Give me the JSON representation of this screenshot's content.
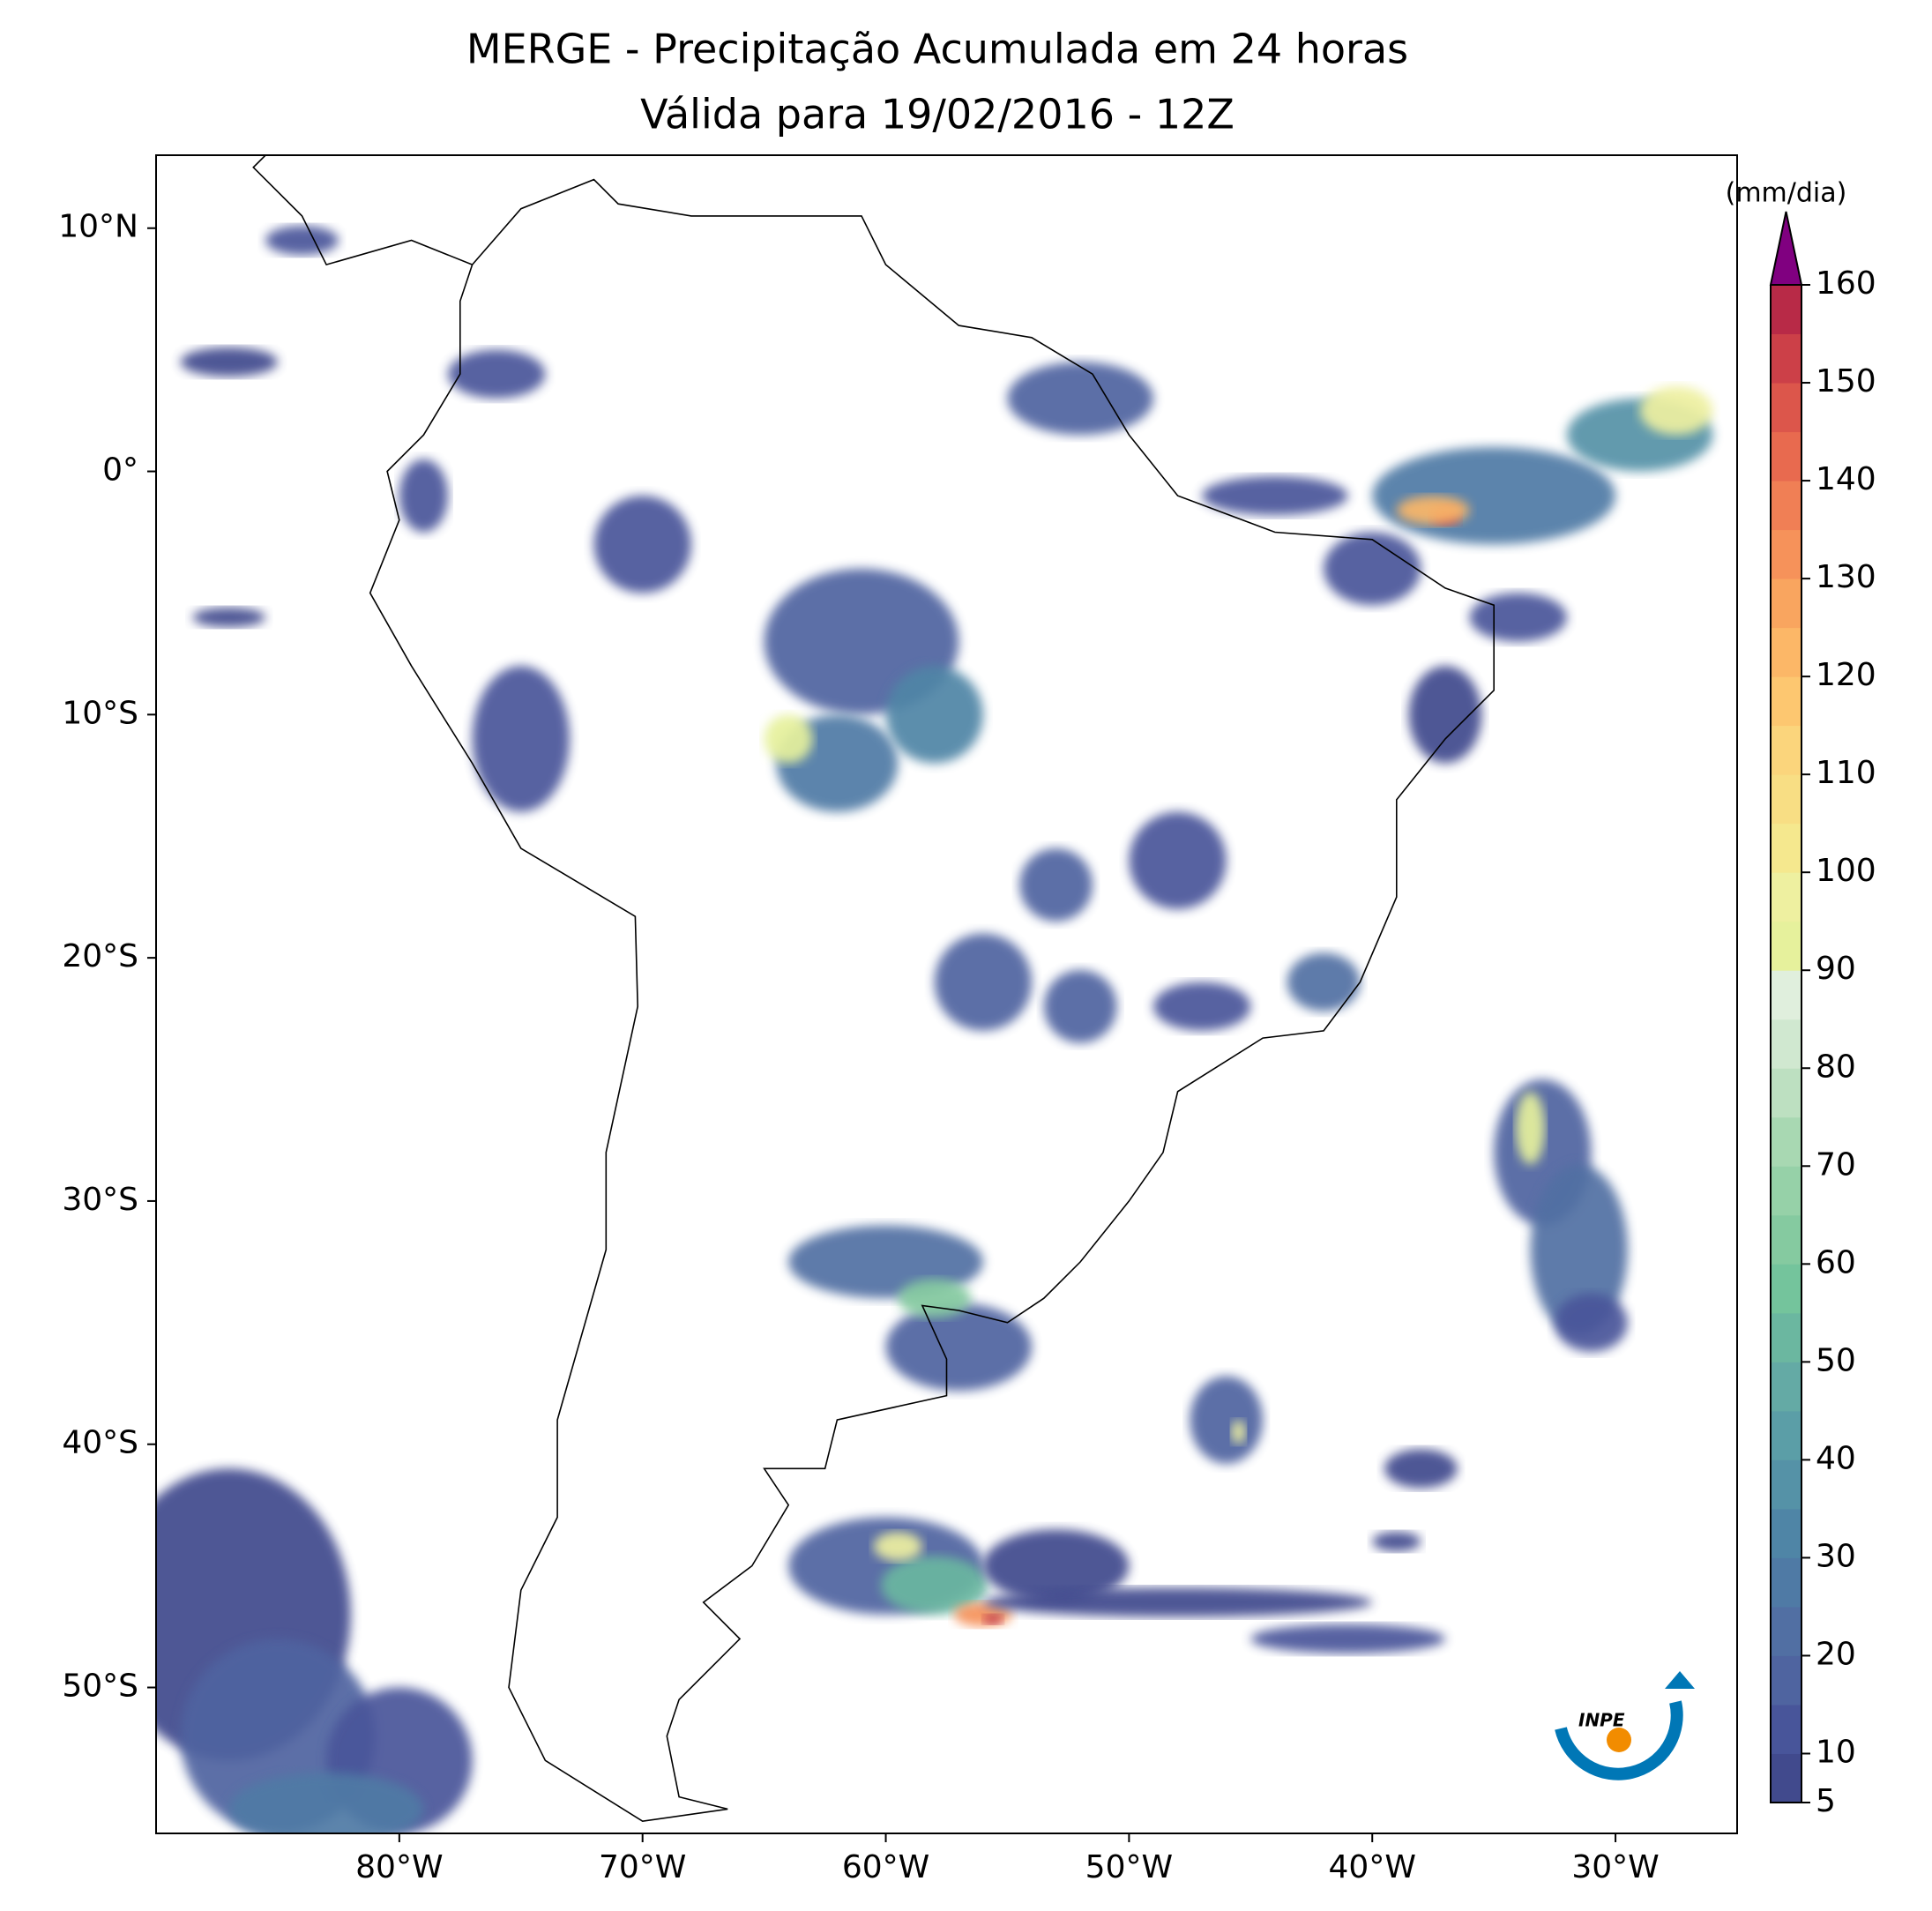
{
  "chart_data": {
    "type": "contour-map",
    "title": "MERGE - Precipitação Acumulada em 24 horas",
    "subtitle": "Válida para 19/02/2016 - 12Z",
    "xlim": [
      -90,
      -25
    ],
    "ylim": [
      -56,
      13
    ],
    "xticks": [
      {
        "value": -80,
        "label": "80°W"
      },
      {
        "value": -70,
        "label": "70°W"
      },
      {
        "value": -60,
        "label": "60°W"
      },
      {
        "value": -50,
        "label": "50°W"
      },
      {
        "value": -40,
        "label": "40°W"
      },
      {
        "value": -30,
        "label": "30°W"
      }
    ],
    "yticks": [
      {
        "value": 10,
        "label": "10°N"
      },
      {
        "value": 0,
        "label": "0°"
      },
      {
        "value": -10,
        "label": "10°S"
      },
      {
        "value": -20,
        "label": "20°S"
      },
      {
        "value": -30,
        "label": "30°S"
      },
      {
        "value": -40,
        "label": "40°S"
      },
      {
        "value": -50,
        "label": "50°S"
      }
    ],
    "colorbar": {
      "label": "(mm/dia)",
      "lim": [
        5,
        160
      ],
      "ticks": [
        5,
        10,
        20,
        30,
        40,
        50,
        60,
        70,
        80,
        90,
        100,
        110,
        120,
        130,
        140,
        150,
        160
      ],
      "step": 5,
      "colors": [
        "#414a8d",
        "#48559a",
        "#4f64a0",
        "#516fa3",
        "#4f7aa5",
        "#4f85a6",
        "#5592a7",
        "#5b9ea7",
        "#64aaa5",
        "#6bb7a0",
        "#74c49c",
        "#85caa0",
        "#96d1a8",
        "#a8d8b2",
        "#bde0c1",
        "#d0e8d0",
        "#e0efdd",
        "#e6f19c",
        "#eef0a0",
        "#f5e88e",
        "#f8de84",
        "#fbd57c",
        "#fdc770",
        "#fcb767",
        "#f9a55f",
        "#f6925a",
        "#f07f55",
        "#e86a4f",
        "#dc564b",
        "#cc4048",
        "#b82a47"
      ],
      "extend_color": "#800080"
    },
    "logo_text": "INPE"
  }
}
